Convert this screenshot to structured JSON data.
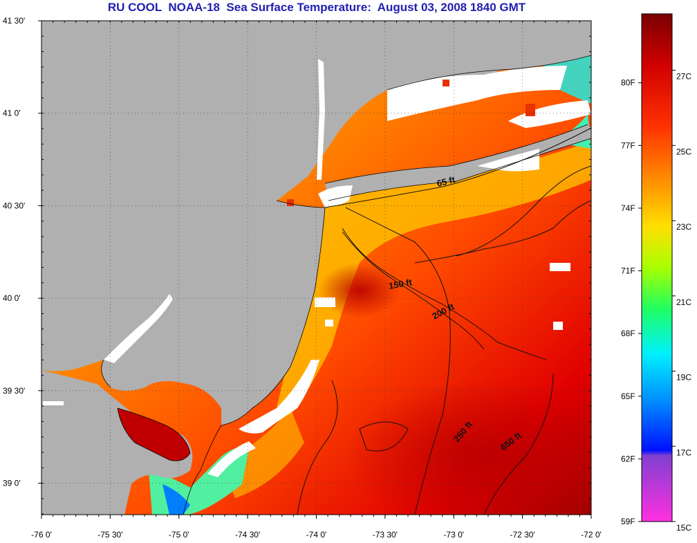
{
  "title": "RU COOL  NOAA-18  Sea Surface Temperature:  August 03, 2008 1840 GMT",
  "map": {
    "lon_range": [
      -76.0,
      -72.0
    ],
    "lat_range": [
      38.83,
      41.5
    ],
    "lat_labels": [
      {
        "value": 41.5,
        "text": "41 30'"
      },
      {
        "value": 41.0,
        "text": "41 0'"
      },
      {
        "value": 40.5,
        "text": "40 30'"
      },
      {
        "value": 40.0,
        "text": "40 0'"
      },
      {
        "value": 39.5,
        "text": "39 30'"
      },
      {
        "value": 39.0,
        "text": "39 0'"
      }
    ],
    "lon_labels": [
      {
        "value": -76.0,
        "text": "-76 0'"
      },
      {
        "value": -75.5,
        "text": "-75 30'"
      },
      {
        "value": -75.0,
        "text": "-75 0'"
      },
      {
        "value": -74.5,
        "text": "-74 30'"
      },
      {
        "value": -74.0,
        "text": "-74 0'"
      },
      {
        "value": -73.5,
        "text": "-73 30'"
      },
      {
        "value": -73.0,
        "text": "-73 0'"
      },
      {
        "value": -72.5,
        "text": "-72 30'"
      },
      {
        "value": -72.0,
        "text": "-72 0'"
      }
    ],
    "contour_labels": [
      "65 ft",
      "150 ft",
      "200 ft",
      "250 ft",
      "650 ft"
    ],
    "land_color": "#b0b0b0",
    "cloud_color": "#ffffff"
  },
  "colorbar": {
    "min_c": 15,
    "max_c": 28.5,
    "celsius_labels": [
      {
        "value": 27,
        "text": "27C"
      },
      {
        "value": 25,
        "text": "25C"
      },
      {
        "value": 23,
        "text": "23C"
      },
      {
        "value": 21,
        "text": "21C"
      },
      {
        "value": 19,
        "text": "19C"
      },
      {
        "value": 17,
        "text": "17C"
      },
      {
        "value": 15,
        "text": "15C"
      }
    ],
    "fahrenheit_labels": [
      {
        "value": 80,
        "text": "80F"
      },
      {
        "value": 77,
        "text": "77F"
      },
      {
        "value": 74,
        "text": "74F"
      },
      {
        "value": 71,
        "text": "71F"
      },
      {
        "value": 68,
        "text": "68F"
      },
      {
        "value": 65,
        "text": "65F"
      },
      {
        "value": 62,
        "text": "62F"
      },
      {
        "value": 59,
        "text": "59F"
      }
    ]
  }
}
